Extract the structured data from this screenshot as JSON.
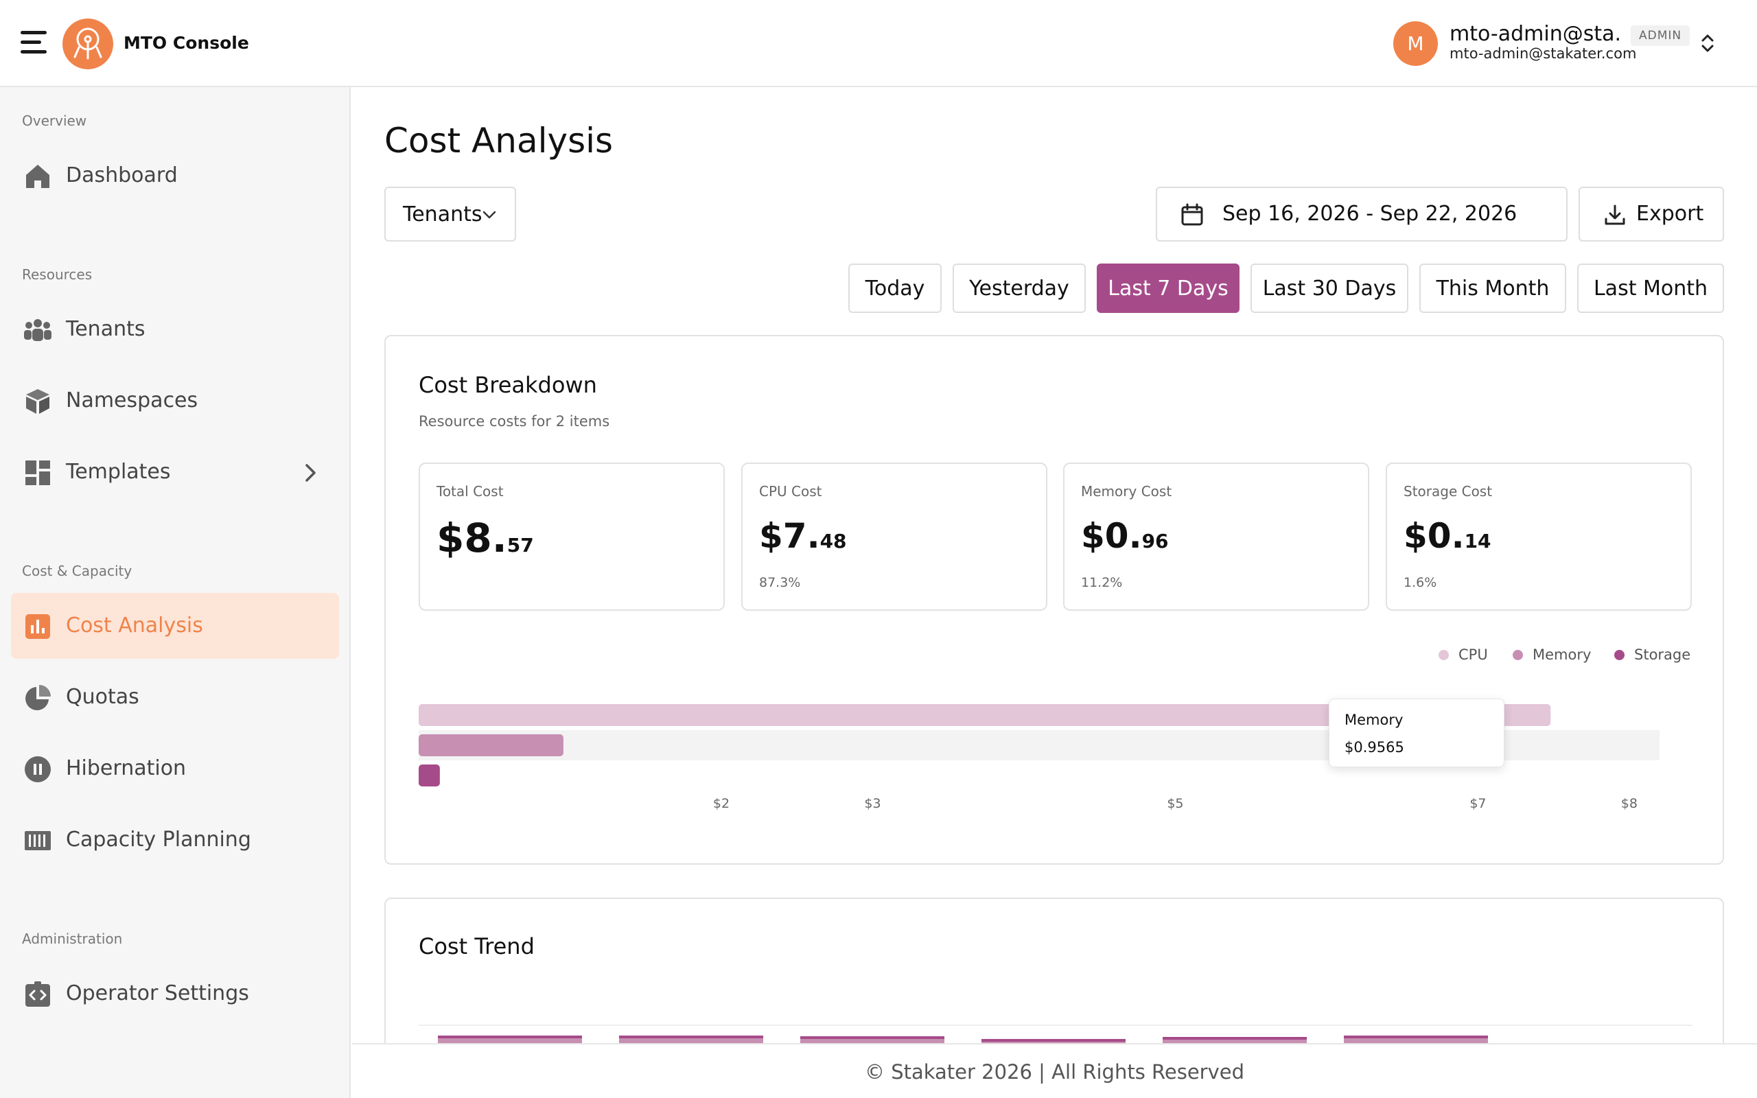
{
  "header": {
    "app_title": "MTO Console",
    "user_initial": "M",
    "user_name": "mto-admin@sta...",
    "user_email": "mto-admin@stakater.com",
    "user_role": "ADMIN"
  },
  "sidebar": {
    "sections": {
      "overview": "Overview",
      "resources": "Resources",
      "cost_capacity": "Cost & Capacity",
      "administration": "Administration"
    },
    "items": [
      {
        "label": "Dashboard",
        "icon": "home-icon"
      },
      {
        "label": "Tenants",
        "icon": "users-icon"
      },
      {
        "label": "Namespaces",
        "icon": "cube-icon"
      },
      {
        "label": "Templates",
        "icon": "dashboard-grid-icon"
      },
      {
        "label": "Cost Analysis",
        "icon": "bar-chart-icon",
        "active": true
      },
      {
        "label": "Quotas",
        "icon": "pie-chart-icon"
      },
      {
        "label": "Hibernation",
        "icon": "pause-icon"
      },
      {
        "label": "Capacity Planning",
        "icon": "barcode-icon"
      },
      {
        "label": "Operator Settings",
        "icon": "code-settings-icon"
      }
    ]
  },
  "main": {
    "title": "Cost Analysis",
    "tenants_dropdown": "Tenants",
    "date_range": "Sep 16, 2026 - Sep 22, 2026",
    "export_label": "Export",
    "ranges": [
      "Today",
      "Yesterday",
      "Last 7 Days",
      "Last 30 Days",
      "This Month",
      "Last Month"
    ],
    "active_range": "Last 7 Days"
  },
  "breakdown": {
    "title": "Cost Breakdown",
    "subtitle": "Resource costs for 2 items",
    "metrics": [
      {
        "label": "Total Cost",
        "int": "$8.",
        "dec": "57",
        "pct": ""
      },
      {
        "label": "CPU Cost",
        "int": "$7.",
        "dec": "48",
        "pct": "87.3%"
      },
      {
        "label": "Memory Cost",
        "int": "$0.",
        "dec": "96",
        "pct": "11.2%"
      },
      {
        "label": "Storage Cost",
        "int": "$0.",
        "dec": "14",
        "pct": "1.6%"
      }
    ],
    "tooltip": {
      "series": "Memory",
      "value": "$0.9565"
    }
  },
  "chart_data": {
    "type": "bar",
    "orientation": "horizontal",
    "categories": [
      "CPU",
      "Memory",
      "Storage"
    ],
    "values": [
      7.48,
      0.9565,
      0.14
    ],
    "legend": [
      "CPU",
      "Memory",
      "Storage"
    ],
    "legend_position": "top-right",
    "x_ticks": [
      "$2",
      "$3",
      "$5",
      "$7",
      "$8"
    ],
    "x_tick_values": [
      2,
      3,
      5,
      7,
      8
    ],
    "xlim": [
      0,
      8.2
    ],
    "colors": {
      "CPU": "#e3c6d8",
      "Memory": "#c78fb2",
      "Storage": "#a64b8a"
    }
  },
  "trend": {
    "title": "Cost Trend"
  },
  "footer": {
    "text": "© Stakater 2026 | All Rights Reserved"
  },
  "colors": {
    "accent": "#f0834a",
    "active_range_bg": "#a64b8a",
    "active_nav_bg": "#fde5d8"
  }
}
